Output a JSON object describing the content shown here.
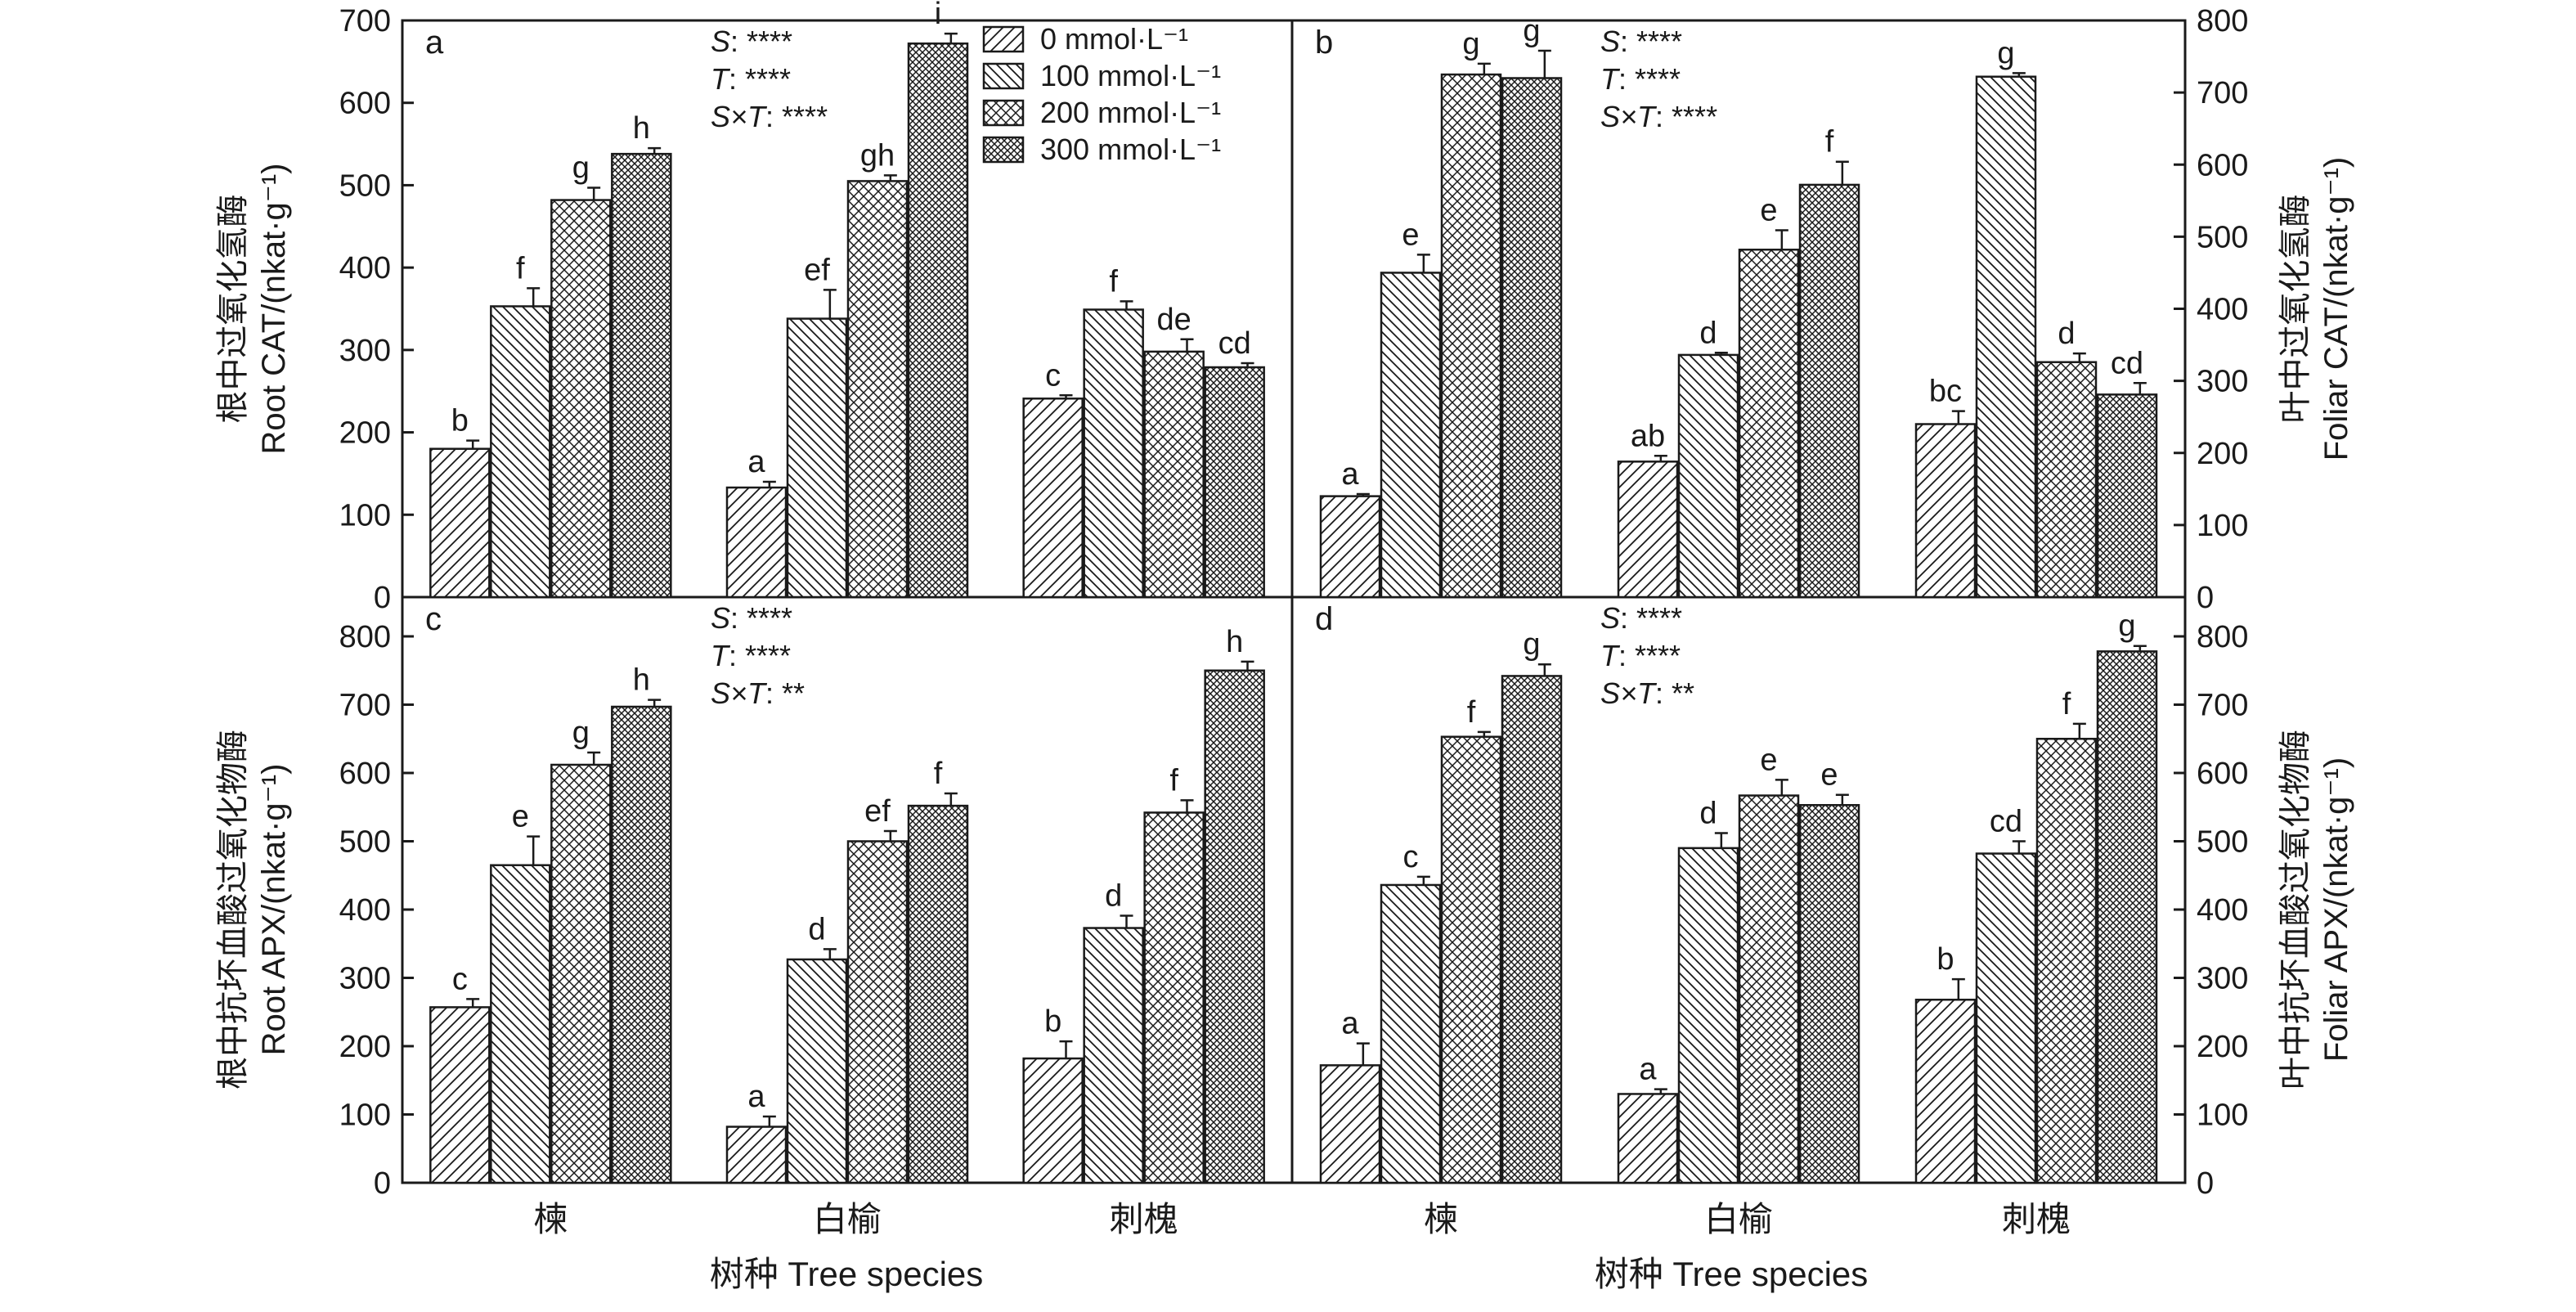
{
  "figure": {
    "xlabel": "树种 Tree species",
    "legend": [
      "0 mmol·L⁻¹",
      "100 mmol·L⁻¹",
      "200 mmol·L⁻¹",
      "300 mmol·L⁻¹"
    ]
  },
  "chart_data": [
    {
      "panel": "a",
      "type": "bar",
      "categories": [
        "楝",
        "白榆",
        "刺槐"
      ],
      "series": [
        {
          "name": "0 mmol·L⁻¹",
          "values": [
            180,
            133,
            241
          ],
          "errors": [
            10,
            7,
            4
          ],
          "letters": [
            "b",
            "a",
            "c"
          ]
        },
        {
          "name": "100 mmol·L⁻¹",
          "values": [
            353,
            338,
            349
          ],
          "errors": [
            22,
            35,
            10
          ],
          "letters": [
            "f",
            "ef",
            "f"
          ]
        },
        {
          "name": "200 mmol·L⁻¹",
          "values": [
            482,
            505,
            298
          ],
          "errors": [
            15,
            7,
            15
          ],
          "letters": [
            "g",
            "gh",
            "de"
          ]
        },
        {
          "name": "300 mmol·L⁻¹",
          "values": [
            538,
            672,
            279
          ],
          "errors": [
            7,
            12,
            5
          ],
          "letters": [
            "h",
            "i",
            "cd"
          ]
        }
      ],
      "ylabel_cn": "根中过氧化氢酶",
      "ylabel_en": "Root CAT/(nkat·g⁻¹)",
      "ylim": [
        0,
        700
      ],
      "yticks": [
        0,
        100,
        200,
        300,
        400,
        500,
        600,
        700
      ],
      "stats": [
        {
          "sym": "S",
          "sig": "****"
        },
        {
          "sym": "T",
          "sig": "****"
        },
        {
          "sym": "S×T",
          "sig": "****"
        }
      ]
    },
    {
      "panel": "b",
      "type": "bar",
      "categories": [
        "楝",
        "白榆",
        "刺槐"
      ],
      "series": [
        {
          "name": "0 mmol·L⁻¹",
          "values": [
            140,
            188,
            240
          ],
          "errors": [
            3,
            8,
            18
          ],
          "letters": [
            "a",
            "ab",
            "bc"
          ]
        },
        {
          "name": "100 mmol·L⁻¹",
          "values": [
            450,
            336,
            722
          ],
          "errors": [
            25,
            3,
            5
          ],
          "letters": [
            "e",
            "d",
            "g"
          ]
        },
        {
          "name": "200 mmol·L⁻¹",
          "values": [
            725,
            482,
            326
          ],
          "errors": [
            15,
            27,
            12
          ],
          "letters": [
            "g",
            "e",
            "d"
          ]
        },
        {
          "name": "300 mmol·L⁻¹",
          "values": [
            720,
            572,
            281
          ],
          "errors": [
            38,
            32,
            16
          ],
          "letters": [
            "g",
            "f",
            "cd"
          ]
        }
      ],
      "ylabel_cn": "叶中过氧化氢酶",
      "ylabel_en": "Foliar CAT/(nkat·g⁻¹)",
      "ylim": [
        0,
        800
      ],
      "yticks": [
        0,
        100,
        200,
        300,
        400,
        500,
        600,
        700,
        800
      ],
      "stats": [
        {
          "sym": "S",
          "sig": "****"
        },
        {
          "sym": "T",
          "sig": "****"
        },
        {
          "sym": "S×T",
          "sig": "****"
        }
      ]
    },
    {
      "panel": "c",
      "type": "bar",
      "categories": [
        "楝",
        "白榆",
        "刺槐"
      ],
      "series": [
        {
          "name": "0 mmol·L⁻¹",
          "values": [
            257,
            82,
            182
          ],
          "errors": [
            12,
            15,
            25
          ],
          "letters": [
            "c",
            "a",
            "b"
          ]
        },
        {
          "name": "100 mmol·L⁻¹",
          "values": [
            465,
            327,
            373
          ],
          "errors": [
            42,
            15,
            18
          ],
          "letters": [
            "e",
            "d",
            "d"
          ]
        },
        {
          "name": "200 mmol·L⁻¹",
          "values": [
            612,
            500,
            542
          ],
          "errors": [
            18,
            15,
            18
          ],
          "letters": [
            "g",
            "ef",
            "f"
          ]
        },
        {
          "name": "300 mmol·L⁻¹",
          "values": [
            697,
            552,
            750
          ],
          "errors": [
            10,
            18,
            13
          ],
          "letters": [
            "h",
            "f",
            "h"
          ]
        }
      ],
      "ylabel_cn": "根中抗坏血酸过氧化物酶",
      "ylabel_en": "Root APX/(nkat·g⁻¹)",
      "ylim": [
        0,
        800
      ],
      "yticks": [
        0,
        100,
        200,
        300,
        400,
        500,
        600,
        700,
        800
      ],
      "stats": [
        {
          "sym": "S",
          "sig": "****"
        },
        {
          "sym": "T",
          "sig": "****"
        },
        {
          "sym": "S×T",
          "sig": "**"
        }
      ]
    },
    {
      "panel": "d",
      "type": "bar",
      "categories": [
        "楝",
        "白榆",
        "刺槐"
      ],
      "series": [
        {
          "name": "0 mmol·L⁻¹",
          "values": [
            172,
            130,
            268
          ],
          "errors": [
            32,
            7,
            30
          ],
          "letters": [
            "a",
            "a",
            "b"
          ]
        },
        {
          "name": "100 mmol·L⁻¹",
          "values": [
            436,
            490,
            482
          ],
          "errors": [
            12,
            22,
            18
          ],
          "letters": [
            "c",
            "d",
            "cd"
          ]
        },
        {
          "name": "200 mmol·L⁻¹",
          "values": [
            653,
            567,
            650
          ],
          "errors": [
            7,
            23,
            22
          ],
          "letters": [
            "f",
            "e",
            "f"
          ]
        },
        {
          "name": "300 mmol·L⁻¹",
          "values": [
            742,
            553,
            778
          ],
          "errors": [
            17,
            15,
            8
          ],
          "letters": [
            "g",
            "e",
            "g"
          ]
        }
      ],
      "ylabel_cn": "叶中抗坏血酸过氧化物酶",
      "ylabel_en": "Foliar APX/(nkat·g⁻¹)",
      "ylim": [
        0,
        800
      ],
      "yticks": [
        0,
        100,
        200,
        300,
        400,
        500,
        600,
        700,
        800
      ],
      "stats": [
        {
          "sym": "S",
          "sig": "****"
        },
        {
          "sym": "T",
          "sig": "****"
        },
        {
          "sym": "S×T",
          "sig": "**"
        }
      ]
    }
  ]
}
